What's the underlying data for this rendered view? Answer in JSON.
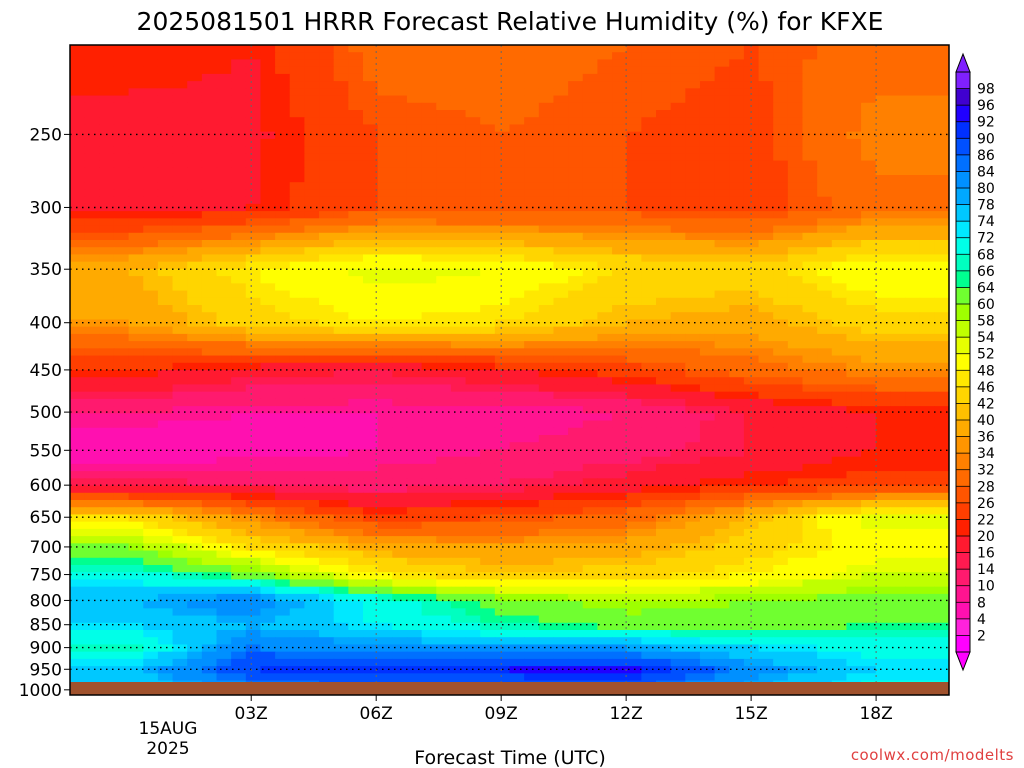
{
  "chart_data": {
    "type": "heatmap",
    "title": "2025081501 HRRR Forecast Relative Humidity (%) for KFXE",
    "xlabel": "Forecast Time (UTC)",
    "ylabel": "",
    "credit": "coolwx.com/modelts",
    "x_ticks": [
      "03Z",
      "06Z",
      "09Z",
      "12Z",
      "15Z",
      "18Z"
    ],
    "date_label": [
      "15AUG",
      "2025"
    ],
    "x_range_hours": [
      0,
      18
    ],
    "y_ticks": [
      250,
      300,
      350,
      400,
      450,
      500,
      550,
      600,
      650,
      700,
      750,
      800,
      850,
      900,
      950,
      1000
    ],
    "y_range_hpa": [
      200,
      1013
    ],
    "y_scale": "log-pressure",
    "grid": true,
    "ground_color": "#a0522d",
    "colorbar": {
      "levels": [
        2,
        4,
        8,
        10,
        14,
        16,
        20,
        22,
        26,
        28,
        32,
        34,
        36,
        40,
        42,
        46,
        48,
        52,
        54,
        58,
        60,
        64,
        66,
        68,
        72,
        74,
        78,
        80,
        84,
        86,
        90,
        92,
        96,
        98
      ],
      "colors": [
        "#ff00ff",
        "#ff22dd",
        "#ff10b0",
        "#ff1490",
        "#ff1a6e",
        "#ff1a50",
        "#ff1a30",
        "#ff2000",
        "#ff3f00",
        "#ff5500",
        "#ff6a00",
        "#ff8000",
        "#ff9500",
        "#ffaa00",
        "#ffc000",
        "#ffd500",
        "#ffe800",
        "#ffff00",
        "#e6ff00",
        "#c0ff00",
        "#9fff00",
        "#70ff30",
        "#00ff90",
        "#00ffc0",
        "#00ffe8",
        "#00e8ff",
        "#00c8ff",
        "#00a8ff",
        "#0090ff",
        "#0070ff",
        "#0050ff",
        "#0030ff",
        "#2000ff",
        "#4000d0",
        "#8020ff"
      ],
      "position": "right"
    },
    "data_hpa": [
      200,
      250,
      300,
      350,
      400,
      450,
      500,
      550,
      600,
      650,
      700,
      750,
      800,
      850,
      900,
      950,
      1000
    ],
    "data_hours": [
      0,
      3,
      6,
      9,
      12,
      15,
      18
    ],
    "rh": [
      [
        22,
        20,
        30,
        30,
        28,
        26,
        30
      ],
      [
        18,
        19,
        26,
        28,
        26,
        24,
        34
      ],
      [
        18,
        20,
        26,
        26,
        26,
        24,
        30
      ],
      [
        40,
        48,
        54,
        52,
        46,
        44,
        52
      ],
      [
        36,
        44,
        48,
        46,
        40,
        38,
        44
      ],
      [
        22,
        18,
        16,
        20,
        24,
        30,
        34
      ],
      [
        10,
        8,
        8,
        8,
        10,
        16,
        20
      ],
      [
        4,
        6,
        8,
        10,
        12,
        16,
        20
      ],
      [
        16,
        14,
        12,
        14,
        18,
        22,
        24
      ],
      [
        46,
        34,
        24,
        26,
        30,
        40,
        54
      ],
      [
        60,
        46,
        38,
        36,
        38,
        44,
        50
      ],
      [
        70,
        62,
        48,
        42,
        44,
        48,
        54
      ],
      [
        78,
        84,
        70,
        62,
        58,
        60,
        62
      ],
      [
        74,
        78,
        72,
        66,
        62,
        62,
        64
      ],
      [
        66,
        84,
        82,
        80,
        80,
        74,
        70
      ],
      [
        76,
        90,
        92,
        92,
        94,
        82,
        74
      ],
      [
        74,
        82,
        86,
        86,
        86,
        78,
        70
      ]
    ]
  }
}
